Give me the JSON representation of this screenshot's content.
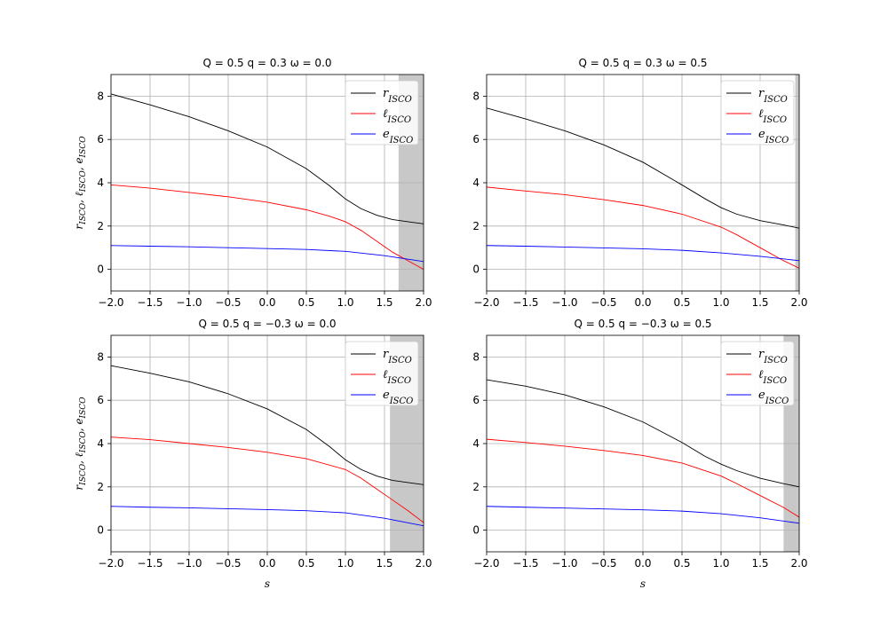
{
  "figure": {
    "background": "#ffffff"
  },
  "colors": {
    "r": "#000000",
    "l": "#ff0000",
    "e": "#0000ff",
    "shade": "#c8c8c8",
    "grid": "#b0b0b0"
  },
  "chart_data": [
    {
      "type": "line",
      "title": "Q = 0.5  q = 0.3  ω = 0.0",
      "xlabel": "",
      "ylabel": "rISCO, ℓISCO, eISCO",
      "xlim": [
        -2.0,
        2.0
      ],
      "ylim": [
        -1.0,
        9.0
      ],
      "xticks": [
        "−2.0",
        "−1.5",
        "−1.0",
        "−0.5",
        "0.0",
        "0.5",
        "1.0",
        "1.5",
        "2.0"
      ],
      "yticks": [
        "0",
        "2",
        "4",
        "6",
        "8"
      ],
      "grid": true,
      "legend": "top-right",
      "shaded_region": [
        1.68,
        2.0
      ],
      "series": [
        {
          "name": "rISCO",
          "color": "#000000",
          "x": [
            -2.0,
            -1.5,
            -1.0,
            -0.5,
            0.0,
            0.5,
            0.8,
            1.0,
            1.2,
            1.4,
            1.6,
            1.8,
            2.0
          ],
          "y": [
            8.1,
            7.6,
            7.05,
            6.4,
            5.65,
            4.65,
            3.85,
            3.25,
            2.8,
            2.5,
            2.3,
            2.2,
            2.1
          ]
        },
        {
          "name": "ℓISCO",
          "color": "#ff0000",
          "x": [
            -2.0,
            -1.5,
            -1.0,
            -0.5,
            0.0,
            0.5,
            0.8,
            1.0,
            1.2,
            1.4,
            1.6,
            1.8,
            2.0
          ],
          "y": [
            3.9,
            3.75,
            3.55,
            3.35,
            3.1,
            2.75,
            2.45,
            2.2,
            1.8,
            1.3,
            0.8,
            0.4,
            0.0
          ]
        },
        {
          "name": "eISCO",
          "color": "#0000ff",
          "x": [
            -2.0,
            -1.5,
            -1.0,
            -0.5,
            0.0,
            0.5,
            1.0,
            1.5,
            2.0
          ],
          "y": [
            1.1,
            1.07,
            1.04,
            1.0,
            0.96,
            0.92,
            0.83,
            0.63,
            0.36
          ]
        }
      ]
    },
    {
      "type": "line",
      "title": "Q = 0.5  q = 0.3  ω = 0.5",
      "xlabel": "",
      "ylabel": "",
      "xlim": [
        -2.0,
        2.0
      ],
      "ylim": [
        -1.0,
        9.0
      ],
      "xticks": [
        "−2.0",
        "−1.5",
        "−1.0",
        "−0.5",
        "0.0",
        "0.5",
        "1.0",
        "1.5",
        "2.0"
      ],
      "yticks": [
        "0",
        "2",
        "4",
        "6",
        "8"
      ],
      "grid": true,
      "legend": "top-right",
      "shaded_region": [
        1.95,
        2.0
      ],
      "series": [
        {
          "name": "rISCO",
          "color": "#000000",
          "x": [
            -2.0,
            -1.5,
            -1.0,
            -0.5,
            0.0,
            0.5,
            0.8,
            1.0,
            1.2,
            1.5,
            1.8,
            2.0
          ],
          "y": [
            7.45,
            6.95,
            6.4,
            5.75,
            4.95,
            3.9,
            3.25,
            2.85,
            2.55,
            2.25,
            2.05,
            1.9
          ]
        },
        {
          "name": "ℓISCO",
          "color": "#ff0000",
          "x": [
            -2.0,
            -1.5,
            -1.0,
            -0.5,
            0.0,
            0.5,
            1.0,
            1.2,
            1.4,
            1.6,
            1.8,
            2.0
          ],
          "y": [
            3.8,
            3.62,
            3.45,
            3.22,
            2.95,
            2.55,
            1.95,
            1.6,
            1.2,
            0.8,
            0.4,
            0.05
          ]
        },
        {
          "name": "eISCO",
          "color": "#0000ff",
          "x": [
            -2.0,
            -1.5,
            -1.0,
            -0.5,
            0.0,
            0.5,
            1.0,
            1.5,
            2.0
          ],
          "y": [
            1.1,
            1.07,
            1.03,
            0.99,
            0.95,
            0.88,
            0.76,
            0.6,
            0.4
          ]
        }
      ]
    },
    {
      "type": "line",
      "title": "Q = 0.5  q = −0.3  ω = 0.0",
      "xlabel": "s",
      "ylabel": "rISCO, ℓISCO, eISCO",
      "xlim": [
        -2.0,
        2.0
      ],
      "ylim": [
        -1.0,
        9.0
      ],
      "xticks": [
        "−2.0",
        "−1.5",
        "−1.0",
        "−0.5",
        "0.0",
        "0.5",
        "1.0",
        "1.5",
        "2.0"
      ],
      "yticks": [
        "0",
        "2",
        "4",
        "6",
        "8"
      ],
      "grid": true,
      "legend": "top-right",
      "shaded_region": [
        1.57,
        2.0
      ],
      "series": [
        {
          "name": "rISCO",
          "color": "#000000",
          "x": [
            -2.0,
            -1.5,
            -1.0,
            -0.5,
            0.0,
            0.5,
            0.8,
            1.0,
            1.2,
            1.4,
            1.6,
            1.8,
            2.0
          ],
          "y": [
            7.6,
            7.25,
            6.85,
            6.3,
            5.6,
            4.65,
            3.85,
            3.25,
            2.8,
            2.5,
            2.3,
            2.2,
            2.1
          ]
        },
        {
          "name": "ℓISCO",
          "color": "#ff0000",
          "x": [
            -2.0,
            -1.5,
            -1.0,
            -0.5,
            0.0,
            0.5,
            1.0,
            1.2,
            1.4,
            1.6,
            1.8,
            2.0
          ],
          "y": [
            4.3,
            4.18,
            4.0,
            3.82,
            3.6,
            3.3,
            2.8,
            2.4,
            1.9,
            1.4,
            0.9,
            0.35
          ]
        },
        {
          "name": "eISCO",
          "color": "#0000ff",
          "x": [
            -2.0,
            -1.5,
            -1.0,
            -0.5,
            0.0,
            0.5,
            1.0,
            1.5,
            2.0
          ],
          "y": [
            1.1,
            1.06,
            1.03,
            0.99,
            0.95,
            0.9,
            0.8,
            0.55,
            0.2
          ]
        }
      ]
    },
    {
      "type": "line",
      "title": "Q = 0.5  q = −0.3  ω = 0.5",
      "xlabel": "s",
      "ylabel": "",
      "xlim": [
        -2.0,
        2.0
      ],
      "ylim": [
        -1.0,
        9.0
      ],
      "xticks": [
        "−2.0",
        "−1.5",
        "−1.0",
        "−0.5",
        "0.0",
        "0.5",
        "1.0",
        "1.5",
        "2.0"
      ],
      "yticks": [
        "0",
        "2",
        "4",
        "6",
        "8"
      ],
      "grid": true,
      "legend": "top-right",
      "shaded_region": [
        1.8,
        2.0
      ],
      "series": [
        {
          "name": "rISCO",
          "color": "#000000",
          "x": [
            -2.0,
            -1.5,
            -1.0,
            -0.5,
            0.0,
            0.5,
            0.8,
            1.0,
            1.2,
            1.5,
            1.8,
            2.0
          ],
          "y": [
            6.95,
            6.65,
            6.25,
            5.7,
            5.0,
            4.05,
            3.4,
            3.05,
            2.75,
            2.4,
            2.15,
            2.0
          ]
        },
        {
          "name": "ℓISCO",
          "color": "#ff0000",
          "x": [
            -2.0,
            -1.5,
            -1.0,
            -0.5,
            0.0,
            0.5,
            1.0,
            1.2,
            1.5,
            1.8,
            2.0
          ],
          "y": [
            4.2,
            4.05,
            3.88,
            3.68,
            3.45,
            3.1,
            2.5,
            2.15,
            1.6,
            1.05,
            0.6
          ]
        },
        {
          "name": "eISCO",
          "color": "#0000ff",
          "x": [
            -2.0,
            -1.5,
            -1.0,
            -0.5,
            0.0,
            0.5,
            1.0,
            1.5,
            2.0
          ],
          "y": [
            1.1,
            1.06,
            1.02,
            0.98,
            0.94,
            0.88,
            0.76,
            0.57,
            0.32
          ]
        }
      ]
    }
  ]
}
